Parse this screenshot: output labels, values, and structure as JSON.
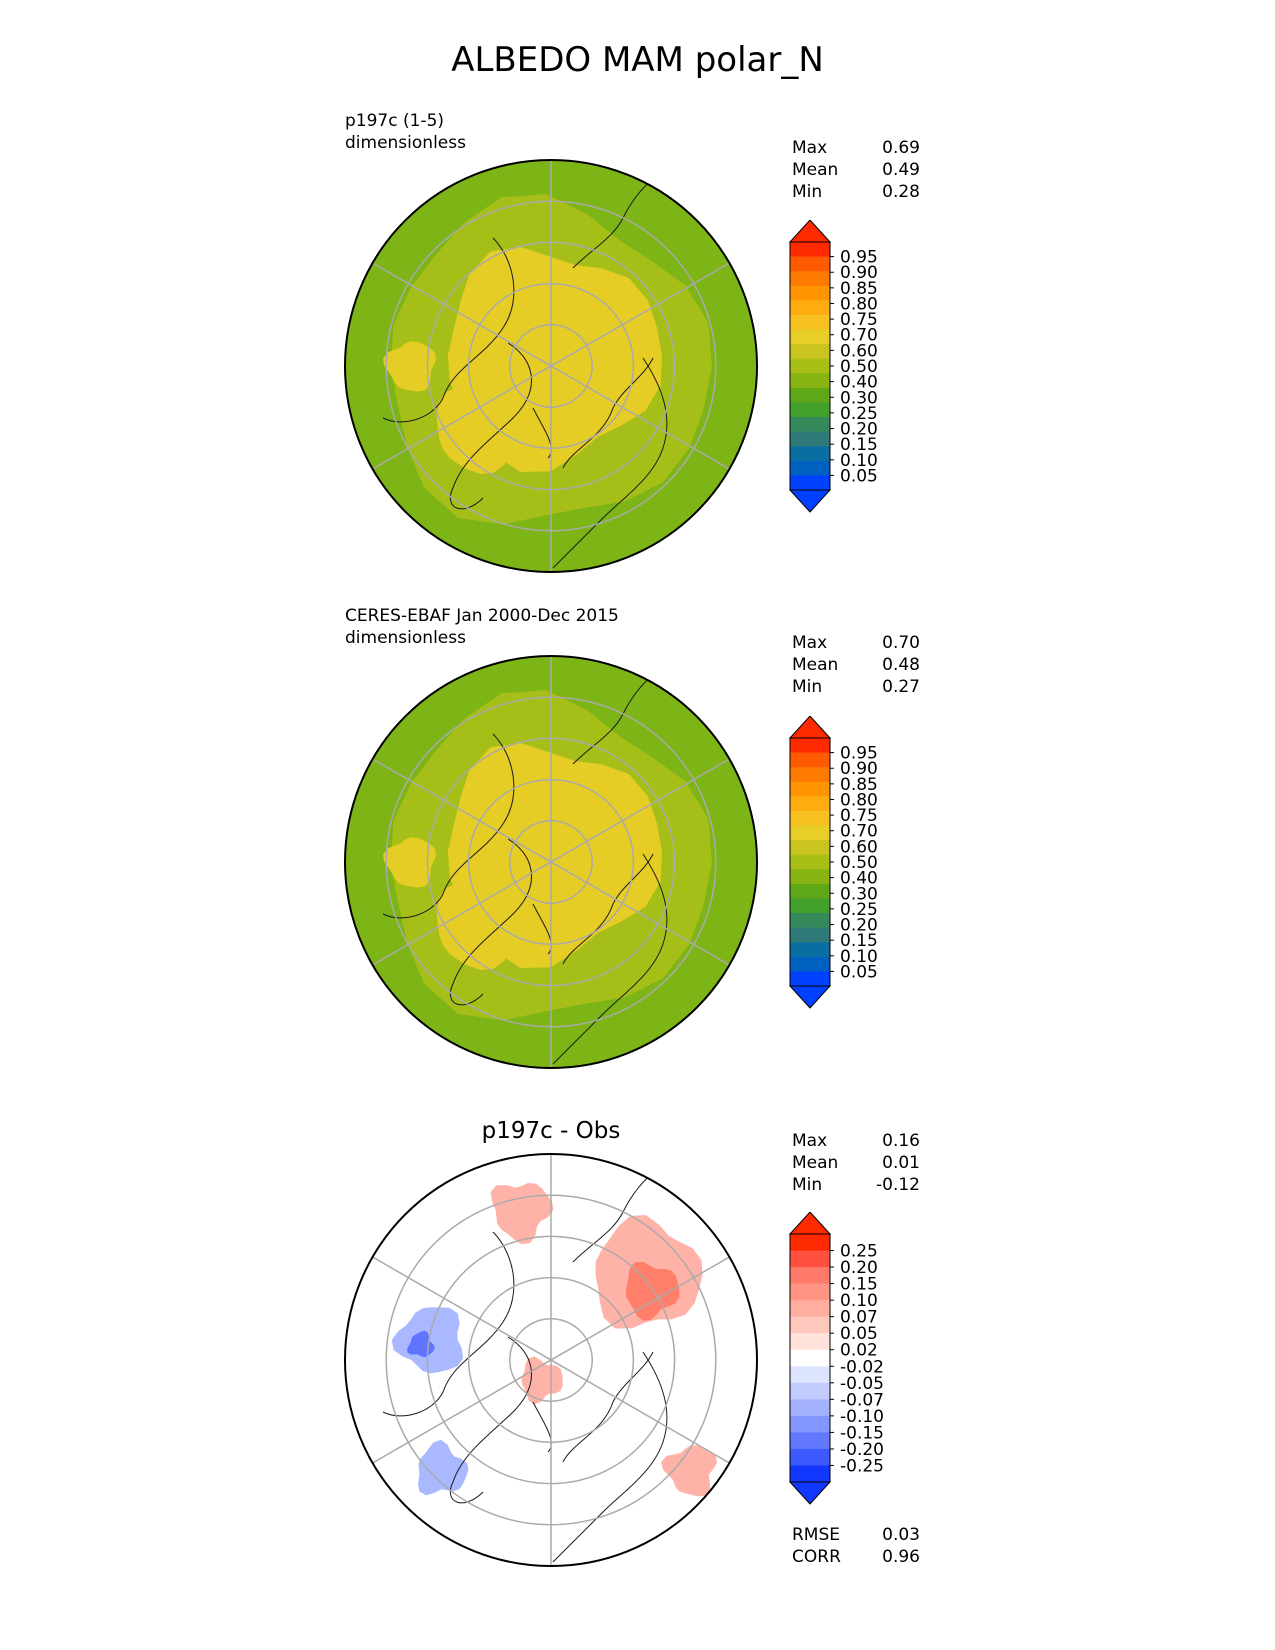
{
  "title": "ALBEDO MAM polar_N",
  "panels": [
    {
      "id": "model",
      "label_lines": [
        "p197c (1-5)",
        "dimensionless"
      ],
      "stats": [
        {
          "label": "Max",
          "value": "0.69"
        },
        {
          "label": "Mean",
          "value": "0.49"
        },
        {
          "label": "Min",
          "value": "0.28"
        }
      ]
    },
    {
      "id": "obs",
      "label_lines": [
        "CERES-EBAF Jan 2000-Dec 2015",
        "dimensionless"
      ],
      "stats": [
        {
          "label": "Max",
          "value": "0.70"
        },
        {
          "label": "Mean",
          "value": "0.48"
        },
        {
          "label": "Min",
          "value": "0.27"
        }
      ]
    },
    {
      "id": "diff",
      "title": "p197c - Obs",
      "stats": [
        {
          "label": "Max",
          "value": "0.16"
        },
        {
          "label": "Mean",
          "value": "0.01"
        },
        {
          "label": "Min",
          "value": "-0.12"
        }
      ],
      "footer_stats": [
        {
          "label": "RMSE",
          "value": "0.03"
        },
        {
          "label": "CORR",
          "value": "0.96"
        }
      ]
    }
  ],
  "colorbars": {
    "albedo": {
      "ticks": [
        "0.95",
        "0.90",
        "0.85",
        "0.80",
        "0.75",
        "0.70",
        "0.60",
        "0.50",
        "0.40",
        "0.30",
        "0.25",
        "0.20",
        "0.15",
        "0.10",
        "0.05"
      ],
      "colors": [
        "#ff2a00",
        "#ff5a00",
        "#ff7a00",
        "#ff9400",
        "#ffac10",
        "#f6c020",
        "#e8cf28",
        "#c9c420",
        "#a8bf18",
        "#88b514",
        "#5fa818",
        "#43a02a",
        "#358a5c",
        "#2f7a78",
        "#0a6fa0",
        "#0060c0",
        "#0040ff"
      ],
      "top_color": "#ff2a00",
      "bottom_color": "#0040ff"
    },
    "diff": {
      "ticks": [
        "0.25",
        "0.20",
        "0.15",
        "0.10",
        "0.07",
        "0.05",
        "0.02",
        "-0.02",
        "-0.05",
        "-0.07",
        "-0.10",
        "-0.15",
        "-0.20",
        "-0.25"
      ],
      "colors": [
        "#ff2a00",
        "#ff5040",
        "#ff7a68",
        "#ff9484",
        "#ffaea0",
        "#ffc8bc",
        "#ffe2da",
        "#ffffff",
        "#dde4ff",
        "#c2ccff",
        "#a4b2ff",
        "#8496ff",
        "#6278ff",
        "#3c58ff",
        "#1238ff"
      ],
      "top_color": "#ff2a00",
      "bottom_color": "#1238ff"
    }
  },
  "map_colors": {
    "outer": "#7db416",
    "mid": "#a5bf18",
    "inner": "#e6cd26",
    "diff_pos": "#ffb3a8",
    "diff_pos_strong": "#ff7f6a",
    "diff_neg": "#aab8ff",
    "diff_neg_strong": "#5f75ff"
  }
}
